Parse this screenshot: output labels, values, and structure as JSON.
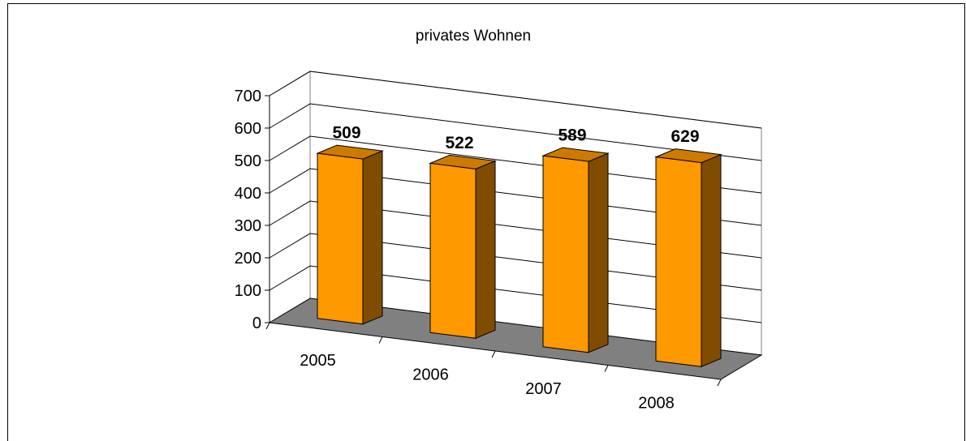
{
  "chart_data": {
    "type": "bar",
    "title": "privates Wohnen",
    "categories": [
      "2005",
      "2006",
      "2007",
      "2008"
    ],
    "values": [
      509,
      522,
      589,
      629
    ],
    "ylim": [
      0,
      700
    ],
    "yticks": [
      "0",
      "100",
      "200",
      "300",
      "400",
      "500",
      "600",
      "700"
    ],
    "data_labels": [
      "509",
      "522",
      "589",
      "629"
    ],
    "grid": true,
    "legend": "none",
    "three_d": true,
    "colors": {
      "bar_front": "#ff9900",
      "bar_side": "#804c00",
      "bar_top": "#cc7a00",
      "floor": "#808080",
      "grid": "#000000"
    }
  }
}
